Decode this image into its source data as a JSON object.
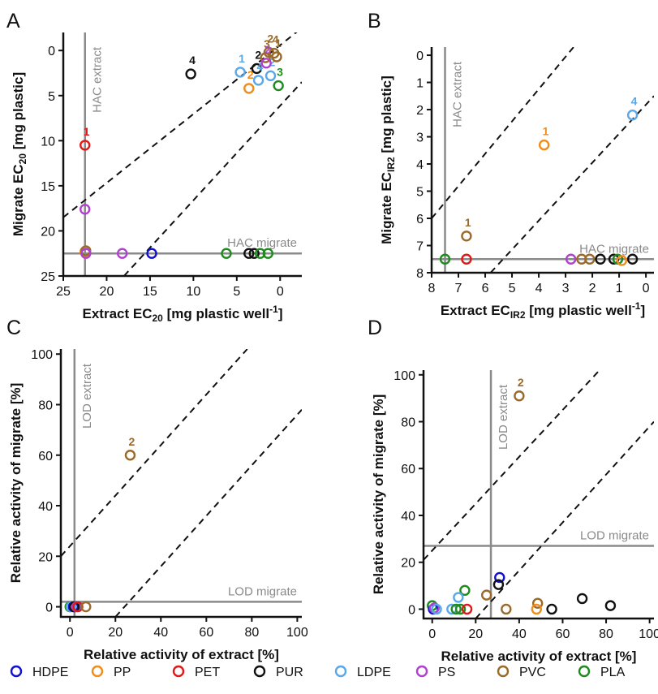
{
  "colors": {
    "HDPE": "#1010d0",
    "PP": "#f08c1a",
    "PET": "#e01818",
    "PUR": "#111111",
    "LDPE": "#5aa8e8",
    "PS": "#b040d0",
    "PVC": "#9a6a2a",
    "PLA": "#1f8a1f",
    "guide": "#8a8a8a",
    "axis": "#111111"
  },
  "legend": [
    "HDPE",
    "PP",
    "PET",
    "PUR",
    "LDPE",
    "PS",
    "PVC",
    "PLA"
  ],
  "chart_data": [
    {
      "panel": "A",
      "type": "scatter",
      "xlabel": "Extract EC20 [mg plastic well-1]",
      "xlabel_parts": {
        "main": "Extract EC",
        "sub": "20",
        "tail": " [mg plastic well",
        "sup": "-1",
        "end": "]"
      },
      "ylabel": "Migrate EC20 [mg plastic]",
      "ylabel_parts": {
        "main": "Migrate EC",
        "sub": "20",
        "tail": " [mg plastic]"
      },
      "xlim": [
        25,
        -2.5
      ],
      "ylim": [
        25,
        -2
      ],
      "xticks": [
        25,
        20,
        15,
        10,
        5,
        0
      ],
      "yticks": [
        0,
        5,
        10,
        15,
        20,
        25
      ],
      "guides": {
        "vline": {
          "x": 22.5,
          "label": "HAC extract"
        },
        "hline": {
          "y": 22.5,
          "label": "HAC migrate"
        }
      },
      "dashed_lines": [
        {
          "from": [
            25,
            18.5
          ],
          "to": [
            -2.5,
            -2.5
          ]
        },
        {
          "from": [
            18,
            25
          ],
          "to": [
            -2.5,
            3.5
          ]
        }
      ],
      "points": [
        {
          "polymer": "PET",
          "x": 22.5,
          "y": 10.5,
          "label": "1"
        },
        {
          "polymer": "PS",
          "x": 22.5,
          "y": 17.6
        },
        {
          "polymer": "PP",
          "x": 22.5,
          "y": 22.3
        },
        {
          "polymer": "PVC",
          "x": 22.4,
          "y": 22.2
        },
        {
          "polymer": "PS",
          "x": 22.4,
          "y": 22.5
        },
        {
          "polymer": "PS",
          "x": 18.2,
          "y": 22.5
        },
        {
          "polymer": "HDPE",
          "x": 14.8,
          "y": 22.5
        },
        {
          "polymer": "PLA",
          "x": 6.2,
          "y": 22.5
        },
        {
          "polymer": "PUR",
          "x": 3.6,
          "y": 22.5
        },
        {
          "polymer": "PUR",
          "x": 3.0,
          "y": 22.5
        },
        {
          "polymer": "PLA",
          "x": 2.3,
          "y": 22.5
        },
        {
          "polymer": "PLA",
          "x": 1.4,
          "y": 22.5
        },
        {
          "polymer": "PUR",
          "x": 10.3,
          "y": 2.6,
          "label": "4"
        },
        {
          "polymer": "LDPE",
          "x": 4.6,
          "y": 2.4,
          "label": "1"
        },
        {
          "polymer": "PUR",
          "x": 2.7,
          "y": 2.0,
          "label": "2"
        },
        {
          "polymer": "PP",
          "x": 3.6,
          "y": 4.2,
          "label": "2"
        },
        {
          "polymer": "LDPE",
          "x": 2.5,
          "y": 3.3,
          "label": "4"
        },
        {
          "polymer": "LDPE",
          "x": 1.1,
          "y": 2.8,
          "label": "2"
        },
        {
          "polymer": "PVC",
          "x": 1.7,
          "y": 0.8,
          "label": "3"
        },
        {
          "polymer": "PVC",
          "x": 1.3,
          "y": 0.2,
          "label": "2"
        },
        {
          "polymer": "PVC",
          "x": 0.7,
          "y": 0.3,
          "label": "4"
        },
        {
          "polymer": "PVC",
          "x": 0.4,
          "y": 0.7,
          "label": "1"
        },
        {
          "polymer": "PS",
          "x": 1.6,
          "y": 1.4,
          "label": "2"
        },
        {
          "polymer": "PLA",
          "x": 0.2,
          "y": 3.9,
          "label": "3"
        }
      ]
    },
    {
      "panel": "B",
      "type": "scatter",
      "xlabel": "Extract ECIR2 [mg plastic well-1]",
      "xlabel_parts": {
        "main": "Extract EC",
        "sub": "IR2",
        "tail": " [mg plastic well",
        "sup": "-1",
        "end": "]"
      },
      "ylabel": "Migrate ECIR2 [mg plastic]",
      "ylabel_parts": {
        "main": "Migrate EC",
        "sub": "IR2",
        "tail": " [mg plastic]"
      },
      "xlim": [
        8,
        -0.3
      ],
      "ylim": [
        8,
        -0.3
      ],
      "xticks": [
        8,
        7,
        6,
        5,
        4,
        3,
        2,
        1,
        0
      ],
      "yticks": [
        0,
        1,
        2,
        3,
        4,
        5,
        6,
        7,
        8
      ],
      "guides": {
        "vline": {
          "x": 7.5,
          "label": "HAC extract"
        },
        "hline": {
          "y": 7.5,
          "label": "HAC migrate"
        }
      },
      "dashed_lines": [
        {
          "from": [
            8,
            6.0
          ],
          "to": [
            2.7,
            -0.3
          ]
        },
        {
          "from": [
            5.8,
            8
          ],
          "to": [
            -0.3,
            1.5
          ]
        }
      ],
      "points": [
        {
          "polymer": "LDPE",
          "x": 0.5,
          "y": 2.2,
          "label": "4"
        },
        {
          "polymer": "PP",
          "x": 3.8,
          "y": 3.3,
          "label": "1"
        },
        {
          "polymer": "PVC",
          "x": 6.7,
          "y": 6.65,
          "label": "1"
        },
        {
          "polymer": "PLA",
          "x": 7.5,
          "y": 7.5
        },
        {
          "polymer": "PET",
          "x": 6.7,
          "y": 7.5
        },
        {
          "polymer": "PS",
          "x": 2.8,
          "y": 7.5
        },
        {
          "polymer": "PVC",
          "x": 2.4,
          "y": 7.5
        },
        {
          "polymer": "PVC",
          "x": 2.1,
          "y": 7.5
        },
        {
          "polymer": "PUR",
          "x": 1.7,
          "y": 7.5
        },
        {
          "polymer": "PUR",
          "x": 1.2,
          "y": 7.5
        },
        {
          "polymer": "PLA",
          "x": 1.05,
          "y": 7.5
        },
        {
          "polymer": "PP",
          "x": 0.9,
          "y": 7.55
        },
        {
          "polymer": "PUR",
          "x": 0.5,
          "y": 7.5
        }
      ]
    },
    {
      "panel": "C",
      "type": "scatter",
      "xlabel": "Relative activity of extract [%]",
      "ylabel": "Relative activity of migrate [%]",
      "xlim": [
        -4,
        102
      ],
      "ylim": [
        -4,
        102
      ],
      "xticks": [
        0,
        20,
        40,
        60,
        80,
        100
      ],
      "yticks": [
        0,
        20,
        40,
        60,
        80,
        100
      ],
      "guides": {
        "vline": {
          "x": 2,
          "label": "LOD extract"
        },
        "hline": {
          "y": 2,
          "label": "LOD migrate"
        }
      },
      "dashed_lines": [
        {
          "from": [
            -4,
            20
          ],
          "to": [
            78,
            102
          ]
        },
        {
          "from": [
            20,
            -4
          ],
          "to": [
            102,
            78
          ]
        }
      ],
      "points": [
        {
          "polymer": "PVC",
          "x": 26.5,
          "y": 60,
          "label": "2"
        },
        {
          "polymer": "PLA",
          "x": 0,
          "y": 0
        },
        {
          "polymer": "LDPE",
          "x": 0.5,
          "y": 0
        },
        {
          "polymer": "HDPE",
          "x": 1.5,
          "y": 0
        },
        {
          "polymer": "PUR",
          "x": 2,
          "y": 0
        },
        {
          "polymer": "PS",
          "x": 3,
          "y": 0
        },
        {
          "polymer": "PET",
          "x": 3.5,
          "y": 0
        },
        {
          "polymer": "PVC",
          "x": 7,
          "y": 0
        }
      ]
    },
    {
      "panel": "D",
      "type": "scatter",
      "xlabel": "Relative activity of extract [%]",
      "ylabel": "Relative activity of migrate [%]",
      "xlim": [
        -4,
        102
      ],
      "ylim": [
        -4,
        102
      ],
      "xticks": [
        0,
        20,
        40,
        60,
        80,
        100
      ],
      "yticks": [
        0,
        20,
        40,
        60,
        80,
        100
      ],
      "guides": {
        "vline": {
          "x": 27,
          "label": "LOD extract"
        },
        "hline": {
          "y": 27,
          "label": "LOD migrate"
        }
      },
      "dashed_lines": [
        {
          "from": [
            -4,
            21
          ],
          "to": [
            77,
            102
          ]
        },
        {
          "from": [
            20,
            -4
          ],
          "to": [
            102,
            80
          ]
        }
      ],
      "points": [
        {
          "polymer": "PVC",
          "x": 40,
          "y": 91,
          "label": "2"
        },
        {
          "polymer": "HDPE",
          "x": 31,
          "y": 13.5
        },
        {
          "polymer": "PUR",
          "x": 30.5,
          "y": 10.5
        },
        {
          "polymer": "PLA",
          "x": 15,
          "y": 8
        },
        {
          "polymer": "PVC",
          "x": 25,
          "y": 6
        },
        {
          "polymer": "LDPE",
          "x": 12,
          "y": 5
        },
        {
          "polymer": "PUR",
          "x": 69,
          "y": 4.5
        },
        {
          "polymer": "PVC",
          "x": 48.5,
          "y": 2.5
        },
        {
          "polymer": "PUR",
          "x": 82,
          "y": 1.5
        },
        {
          "polymer": "PLA",
          "x": 0,
          "y": 1.5
        },
        {
          "polymer": "HDPE",
          "x": 0.5,
          "y": 0
        },
        {
          "polymer": "PS",
          "x": 1,
          "y": 0.5
        },
        {
          "polymer": "LDPE",
          "x": 2,
          "y": 0
        },
        {
          "polymer": "LDPE",
          "x": 9,
          "y": 0
        },
        {
          "polymer": "PLA",
          "x": 11,
          "y": 0
        },
        {
          "polymer": "PLA",
          "x": 13,
          "y": 0
        },
        {
          "polymer": "PET",
          "x": 16,
          "y": 0
        },
        {
          "polymer": "PVC",
          "x": 34,
          "y": 0
        },
        {
          "polymer": "PP",
          "x": 48,
          "y": 0
        },
        {
          "polymer": "PUR",
          "x": 55,
          "y": 0
        }
      ]
    }
  ]
}
